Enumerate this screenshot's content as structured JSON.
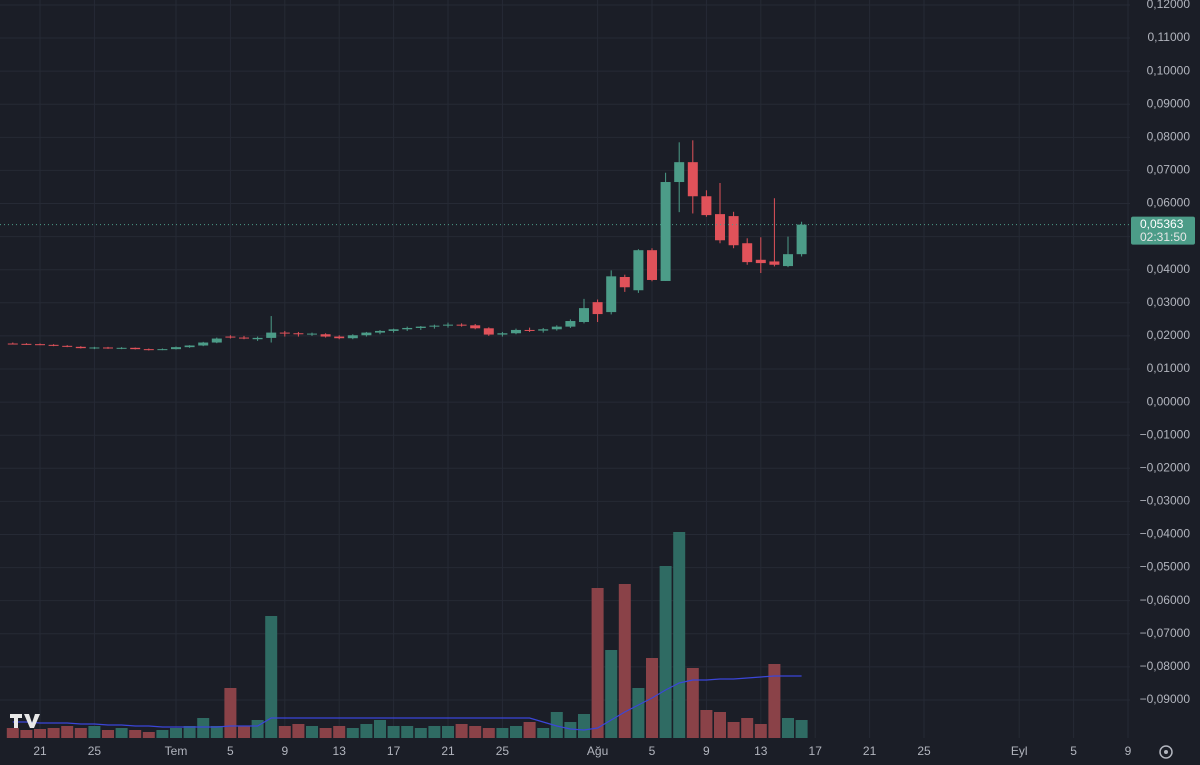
{
  "chart_data": {
    "type": "candlestick",
    "categories": [
      null,
      null,
      "21",
      null,
      null,
      null,
      "25",
      null,
      null,
      null,
      null,
      null,
      "Tem",
      null,
      null,
      null,
      "5",
      null,
      null,
      null,
      "9",
      null,
      null,
      null,
      "13",
      null,
      null,
      null,
      "17",
      null,
      null,
      null,
      "21",
      null,
      null,
      null,
      "25",
      null,
      null,
      null,
      null,
      null,
      null,
      "Ağu",
      null,
      null,
      null,
      "5",
      null,
      null,
      null,
      "9",
      null,
      null,
      null,
      "13",
      null,
      null,
      null,
      "17",
      null,
      null,
      null,
      "21",
      null,
      null,
      null,
      "25",
      null,
      null,
      null,
      null,
      null,
      null,
      "Eyl",
      null,
      null,
      null,
      "5",
      null,
      null,
      null,
      "9"
    ],
    "open": [
      0.0177,
      0.0176,
      0.0175,
      0.0173,
      0.017,
      0.0167,
      0.0163,
      0.0165,
      0.0162,
      0.0164,
      0.016,
      0.0158,
      0.016,
      0.0166,
      0.0171,
      0.018,
      0.0198,
      0.0195,
      0.019,
      0.0194,
      0.021,
      0.0208,
      0.0205,
      0.0205,
      0.0198,
      0.0193,
      0.0202,
      0.021,
      0.0215,
      0.022,
      0.0224,
      0.0228,
      0.0231,
      0.0234,
      0.0232,
      0.0223,
      0.0204,
      0.0208,
      0.0218,
      0.0216,
      0.022,
      0.0228,
      0.0242,
      0.0302,
      0.0272,
      0.0378,
      0.0338,
      0.0459,
      0.0366,
      0.0665,
      0.0725,
      0.0622,
      0.0568,
      0.0562,
      0.048,
      0.043,
      0.0425,
      0.0411,
      0.0447,
      null,
      null,
      null,
      null,
      null,
      null,
      null,
      null,
      null,
      null,
      null,
      null,
      null,
      null,
      null,
      null,
      null,
      null,
      null,
      null,
      null,
      null,
      null,
      null
    ],
    "high": [
      0.018,
      0.0178,
      0.0177,
      0.0175,
      0.0172,
      0.0169,
      0.0167,
      0.0167,
      0.0166,
      0.0165,
      0.0162,
      0.0162,
      0.0168,
      0.0172,
      0.0182,
      0.0195,
      0.0202,
      0.02,
      0.0198,
      0.026,
      0.0215,
      0.0212,
      0.021,
      0.0208,
      0.0202,
      0.0205,
      0.0212,
      0.0218,
      0.0222,
      0.0228,
      0.023,
      0.0234,
      0.024,
      0.0238,
      0.0236,
      0.0226,
      0.0212,
      0.0222,
      0.0225,
      0.0224,
      0.0232,
      0.025,
      0.0312,
      0.031,
      0.0398,
      0.0385,
      0.0462,
      0.0465,
      0.0693,
      0.0785,
      0.0791,
      0.064,
      0.0662,
      0.0575,
      0.0495,
      0.0498,
      0.0616,
      0.05,
      0.0545,
      null,
      null,
      null,
      null,
      null,
      null,
      null,
      null,
      null,
      null,
      null,
      null,
      null,
      null,
      null,
      null,
      null,
      null,
      null,
      null,
      null,
      null,
      null,
      null
    ],
    "low": [
      0.0174,
      0.0173,
      0.0172,
      0.0169,
      0.0166,
      0.0162,
      0.016,
      0.0161,
      0.016,
      0.0159,
      0.0156,
      0.0157,
      0.0159,
      0.0164,
      0.0169,
      0.0178,
      0.0192,
      0.019,
      0.0185,
      0.018,
      0.0198,
      0.0198,
      0.02,
      0.0195,
      0.019,
      0.019,
      0.0198,
      0.0205,
      0.021,
      0.0215,
      0.0218,
      0.0222,
      0.0225,
      0.0228,
      0.022,
      0.02,
      0.0198,
      0.0205,
      0.0212,
      0.021,
      0.0216,
      0.0224,
      0.0238,
      0.0242,
      0.0265,
      0.0333,
      0.033,
      0.0365,
      0.0366,
      0.0574,
      0.057,
      0.056,
      0.048,
      0.0465,
      0.0415,
      0.039,
      0.041,
      0.0408,
      0.044,
      null,
      null,
      null,
      null,
      null,
      null,
      null,
      null,
      null,
      null,
      null,
      null,
      null,
      null,
      null,
      null,
      null,
      null,
      null,
      null,
      null,
      null,
      null,
      null
    ],
    "close": [
      0.0176,
      0.0175,
      0.0173,
      0.017,
      0.0167,
      0.0163,
      0.0165,
      0.0162,
      0.0164,
      0.016,
      0.0158,
      0.016,
      0.0166,
      0.0171,
      0.018,
      0.0192,
      0.0195,
      0.0192,
      0.0194,
      0.021,
      0.0208,
      0.0205,
      0.0207,
      0.0198,
      0.0193,
      0.0202,
      0.021,
      0.0215,
      0.022,
      0.0224,
      0.0228,
      0.0231,
      0.0234,
      0.0232,
      0.0223,
      0.0204,
      0.0208,
      0.0218,
      0.0216,
      0.022,
      0.0228,
      0.0245,
      0.0284,
      0.0266,
      0.038,
      0.0347,
      0.0459,
      0.0369,
      0.0665,
      0.0725,
      0.0622,
      0.0565,
      0.0489,
      0.0474,
      0.0423,
      0.042,
      0.0415,
      0.0447,
      0.05363,
      null,
      null,
      null,
      null,
      null,
      null,
      null,
      null,
      null,
      null,
      null,
      null,
      null,
      null,
      null,
      null,
      null,
      null,
      null,
      null,
      null,
      null,
      null,
      null
    ],
    "volume": [
      10,
      8,
      9,
      10,
      12,
      10,
      12,
      8,
      10,
      8,
      6,
      8,
      10,
      12,
      20,
      12,
      50,
      12,
      18,
      122,
      12,
      14,
      12,
      10,
      12,
      10,
      14,
      18,
      12,
      12,
      10,
      12,
      12,
      14,
      12,
      10,
      10,
      12,
      16,
      10,
      26,
      16,
      24,
      150,
      88,
      154,
      50,
      80,
      172,
      206,
      70,
      28,
      26,
      16,
      20,
      14,
      74,
      20,
      18,
      null,
      null,
      null,
      null,
      null,
      null,
      null,
      null,
      null,
      null,
      null,
      null,
      null,
      null,
      null,
      null,
      null,
      null,
      null,
      null,
      null,
      null,
      null,
      null
    ],
    "volume_ma": [
      16,
      16,
      15,
      15,
      15,
      14,
      14,
      13,
      13,
      12,
      12,
      11,
      11,
      11,
      11,
      11,
      12,
      12,
      12,
      20,
      20,
      20,
      20,
      20,
      20,
      20,
      20,
      20,
      20,
      20,
      20,
      20,
      20,
      20,
      20,
      20,
      20,
      20,
      20,
      16,
      12,
      9,
      8,
      10,
      18,
      26,
      33,
      40,
      48,
      55,
      58,
      58,
      59,
      59,
      60,
      61,
      62,
      62,
      62,
      null,
      null,
      null,
      null,
      null,
      null,
      null,
      null,
      null,
      null,
      null,
      null,
      null,
      null,
      null,
      null,
      null,
      null,
      null,
      null,
      null,
      null,
      null,
      null
    ],
    "volume_ylim": [
      0,
      210
    ],
    "ylim": [
      -0.1015,
      0.1215
    ],
    "yticks": [
      {
        "value": 0.12,
        "label": "0,12000"
      },
      {
        "value": 0.11,
        "label": "0,11000"
      },
      {
        "value": 0.1,
        "label": "0,10000"
      },
      {
        "value": 0.09,
        "label": "0,09000"
      },
      {
        "value": 0.08,
        "label": "0,08000"
      },
      {
        "value": 0.07,
        "label": "0,07000"
      },
      {
        "value": 0.06,
        "label": "0,06000"
      },
      {
        "value": 0.05,
        "label": "0,05000"
      },
      {
        "value": 0.04,
        "label": "0,04000"
      },
      {
        "value": 0.03,
        "label": "0,03000"
      },
      {
        "value": 0.02,
        "label": "0,02000"
      },
      {
        "value": 0.01,
        "label": "0,01000"
      },
      {
        "value": 0,
        "label": "0,00000"
      },
      {
        "value": -0.01,
        "label": "−0,01000"
      },
      {
        "value": -0.02,
        "label": "−0,02000"
      },
      {
        "value": -0.03,
        "label": "−0,03000"
      },
      {
        "value": -0.04,
        "label": "−0,04000"
      },
      {
        "value": -0.05,
        "label": "−0,05000"
      },
      {
        "value": -0.06,
        "label": "−0,06000"
      },
      {
        "value": -0.07,
        "label": "−0,07000"
      },
      {
        "value": -0.08,
        "label": "−0,08000"
      },
      {
        "value": -0.09,
        "label": "−0,09000"
      }
    ],
    "last_price": {
      "value": 0.05363,
      "label": "0,05363"
    },
    "countdown": "02:31:50",
    "up_color": "#4c9c88",
    "down_color": "#e0525a",
    "volume_up_color": "#2f6b63",
    "volume_down_color": "#8a4248",
    "ma_color": "#3b46d8",
    "grid": true
  }
}
